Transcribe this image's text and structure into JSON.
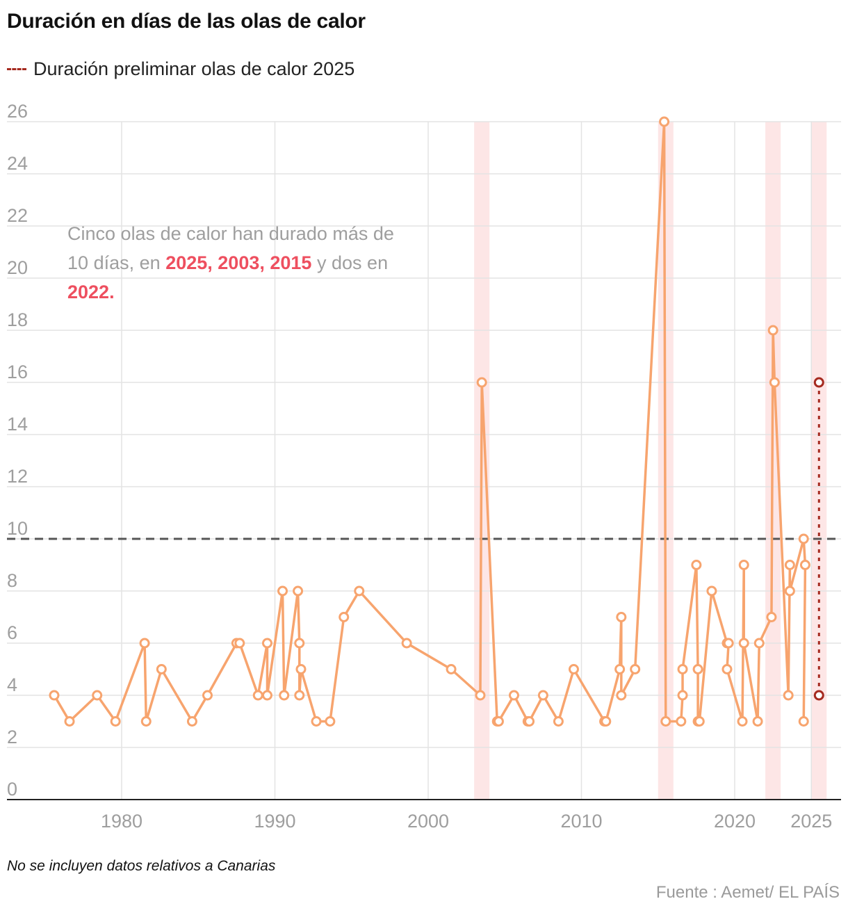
{
  "title": "Duración en días de las olas de calor",
  "legend": {
    "label": "Duración preliminar olas de calor 2025",
    "color": "#a52a1f"
  },
  "annotation": {
    "parts": [
      {
        "text": "Cinco olas de calor han durado más de 10 días, en ",
        "highlight": false
      },
      {
        "text": "2025, 2003, 2015",
        "highlight": true
      },
      {
        "text": " y dos en ",
        "highlight": false
      },
      {
        "text": "2022.",
        "highlight": true
      }
    ],
    "color": "#9e9e9e",
    "highlight_color": "#ee4f5f"
  },
  "footnote": "No se incluyen datos relativos a Canarias",
  "source": "Fuente : Aemet/ EL PAÍS",
  "chart_data": {
    "type": "line",
    "title": "Duración en días de las olas de calor",
    "xlabel": "",
    "ylabel": "",
    "xlim": [
      1974.5,
      2026.5
    ],
    "ylim": [
      0,
      26
    ],
    "x_ticks": [
      1980,
      1990,
      2000,
      2010,
      2020,
      2025
    ],
    "y_ticks": [
      0,
      2,
      4,
      6,
      8,
      10,
      12,
      14,
      16,
      18,
      20,
      22,
      24,
      26
    ],
    "grid": true,
    "reference_line": {
      "y": 10,
      "style": "dashed",
      "color": "#555555"
    },
    "highlight_bands": [
      {
        "from": 2003,
        "to": 2004
      },
      {
        "from": 2015,
        "to": 2016
      },
      {
        "from": 2022,
        "to": 2023
      },
      {
        "from": 2025,
        "to": 2026
      }
    ],
    "series": [
      {
        "color": "#f7a46e",
        "points": [
          [
            1975.6,
            4
          ],
          [
            1976.6,
            3
          ],
          [
            1978.4,
            4
          ],
          [
            1979.6,
            3
          ],
          [
            1981.5,
            6
          ],
          [
            1981.6,
            3
          ],
          [
            1982.6,
            5
          ],
          [
            1984.6,
            3
          ],
          [
            1985.6,
            4
          ],
          [
            1987.5,
            6
          ],
          [
            1987.7,
            6
          ],
          [
            1988.9,
            4
          ],
          [
            1989.5,
            6
          ],
          [
            1989.5,
            4
          ],
          [
            1990.5,
            8
          ],
          [
            1990.6,
            4
          ],
          [
            1991.5,
            8
          ],
          [
            1991.6,
            6
          ],
          [
            1991.6,
            4
          ],
          [
            1991.7,
            5
          ],
          [
            1992.7,
            3
          ],
          [
            1993.6,
            3
          ],
          [
            1994.5,
            7
          ],
          [
            1995.5,
            8
          ],
          [
            1998.6,
            6
          ],
          [
            2001.5,
            5
          ],
          [
            2003.4,
            4
          ],
          [
            2003.5,
            16
          ],
          [
            2004.5,
            3
          ],
          [
            2004.6,
            3
          ],
          [
            2005.6,
            4
          ],
          [
            2006.5,
            3
          ],
          [
            2006.6,
            3
          ],
          [
            2007.5,
            4
          ],
          [
            2008.5,
            3
          ],
          [
            2009.5,
            5
          ],
          [
            2011.5,
            3
          ],
          [
            2011.6,
            3
          ],
          [
            2012.5,
            5
          ],
          [
            2012.6,
            7
          ],
          [
            2012.6,
            4
          ],
          [
            2013.5,
            5
          ],
          [
            2015.4,
            26
          ],
          [
            2015.5,
            3
          ],
          [
            2016.5,
            3
          ],
          [
            2016.6,
            4
          ],
          [
            2016.6,
            5
          ],
          [
            2017.5,
            9
          ],
          [
            2017.6,
            5
          ],
          [
            2017.6,
            3
          ],
          [
            2017.7,
            3
          ],
          [
            2018.5,
            8
          ],
          [
            2019.5,
            6
          ],
          [
            2019.6,
            6
          ],
          [
            2019.5,
            5
          ],
          [
            2020.5,
            3
          ],
          [
            2020.6,
            9
          ],
          [
            2020.6,
            6
          ],
          [
            2021.5,
            3
          ],
          [
            2021.6,
            6
          ],
          [
            2022.4,
            7
          ],
          [
            2022.5,
            18
          ],
          [
            2022.6,
            16
          ],
          [
            2023.5,
            4
          ],
          [
            2023.6,
            9
          ],
          [
            2023.6,
            8
          ],
          [
            2024.5,
            10
          ],
          [
            2024.6,
            9
          ],
          [
            2024.5,
            3
          ]
        ]
      },
      {
        "name": "Duración preliminar olas de calor 2025",
        "color": "#a52a1f",
        "style": "dashed",
        "points": [
          [
            2025.5,
            16
          ],
          [
            2025.5,
            4
          ]
        ]
      }
    ]
  }
}
